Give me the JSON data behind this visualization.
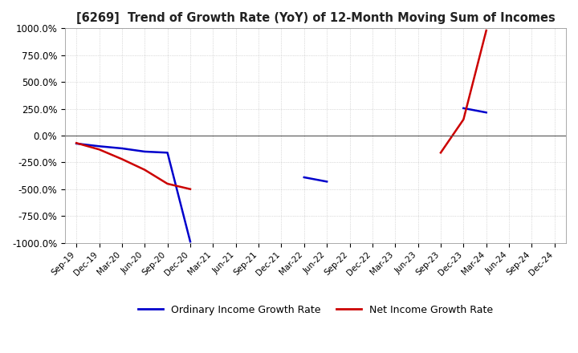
{
  "title": "[6269]  Trend of Growth Rate (YoY) of 12-Month Moving Sum of Incomes",
  "legend_labels": [
    "Ordinary Income Growth Rate",
    "Net Income Growth Rate"
  ],
  "legend_colors": [
    "#0000cc",
    "#cc0000"
  ],
  "ylim": [
    -1000,
    1000
  ],
  "yticks": [
    -1000,
    -750,
    -500,
    -250,
    0,
    250,
    500,
    750,
    1000
  ],
  "ytick_labels": [
    "-1000.0%",
    "-750.0%",
    "-500.0%",
    "-250.0%",
    "0.0%",
    "250.0%",
    "500.0%",
    "750.0%",
    "1000.0%"
  ],
  "background_color": "#ffffff",
  "grid_color": "#aaaaaa",
  "xtick_labels": [
    "Sep-19",
    "Dec-19",
    "Mar-20",
    "Jun-20",
    "Sep-20",
    "Dec-20",
    "Mar-21",
    "Jun-21",
    "Sep-21",
    "Dec-21",
    "Mar-22",
    "Jun-22",
    "Sep-22",
    "Dec-22",
    "Mar-23",
    "Jun-23",
    "Sep-23",
    "Dec-23",
    "Mar-24",
    "Jun-24",
    "Sep-24",
    "Dec-24"
  ],
  "ordinary_segments": [
    {
      "x": [
        0,
        1,
        2,
        3,
        4,
        5
      ],
      "y": [
        -75,
        -100,
        -120,
        -150,
        -160,
        -990
      ]
    },
    {
      "x": [
        10,
        11
      ],
      "y": [
        -390,
        -430
      ]
    },
    {
      "x": [
        17,
        18
      ],
      "y": [
        255,
        215
      ]
    }
  ],
  "net_segments": [
    {
      "x": [
        0,
        1,
        2,
        3,
        4,
        5
      ],
      "y": [
        -70,
        -130,
        -220,
        -320,
        -450,
        -500
      ]
    },
    {
      "x": [
        16,
        17,
        18
      ],
      "y": [
        -160,
        150,
        980
      ]
    }
  ]
}
